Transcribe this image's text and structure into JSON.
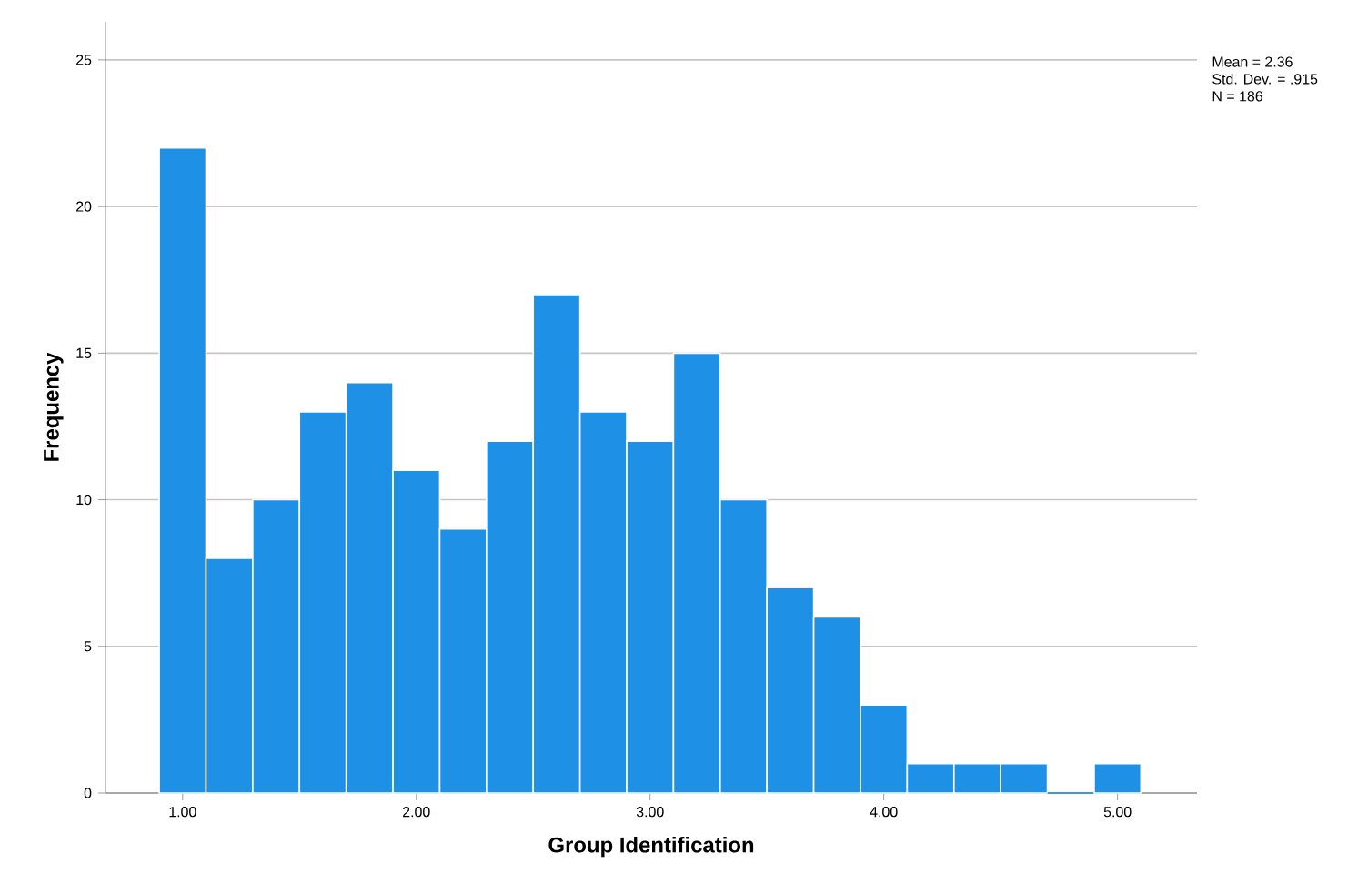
{
  "chart_data": {
    "type": "histogram",
    "xlabel": "Group Identification",
    "ylabel": "Frequency",
    "bins": [
      0.9,
      1.1,
      1.3,
      1.5,
      1.7,
      1.9,
      2.1,
      2.3,
      2.5,
      2.7,
      2.9,
      3.1,
      3.3,
      3.5,
      3.7,
      3.9,
      4.1,
      4.3,
      4.5,
      4.7,
      4.9,
      5.1
    ],
    "values": [
      22,
      8,
      10,
      13,
      14,
      11,
      9,
      12,
      17,
      13,
      12,
      15,
      10,
      7,
      6,
      3,
      1,
      1,
      1,
      0,
      1
    ],
    "color": "#1e90e6",
    "xlim": [
      0.67,
      5.34
    ],
    "ylim": [
      0,
      26.3
    ],
    "xticks": [
      {
        "value": 1,
        "label": "1.00"
      },
      {
        "value": 2,
        "label": "2.00"
      },
      {
        "value": 3,
        "label": "3.00"
      },
      {
        "value": 4,
        "label": "4.00"
      },
      {
        "value": 5,
        "label": "5.00"
      }
    ],
    "yticks": [
      0,
      5,
      10,
      15,
      20,
      25
    ],
    "grid": "y",
    "annotations": [
      "Mean = 2.36",
      "Std. Dev. = .915",
      "N = 186"
    ]
  }
}
